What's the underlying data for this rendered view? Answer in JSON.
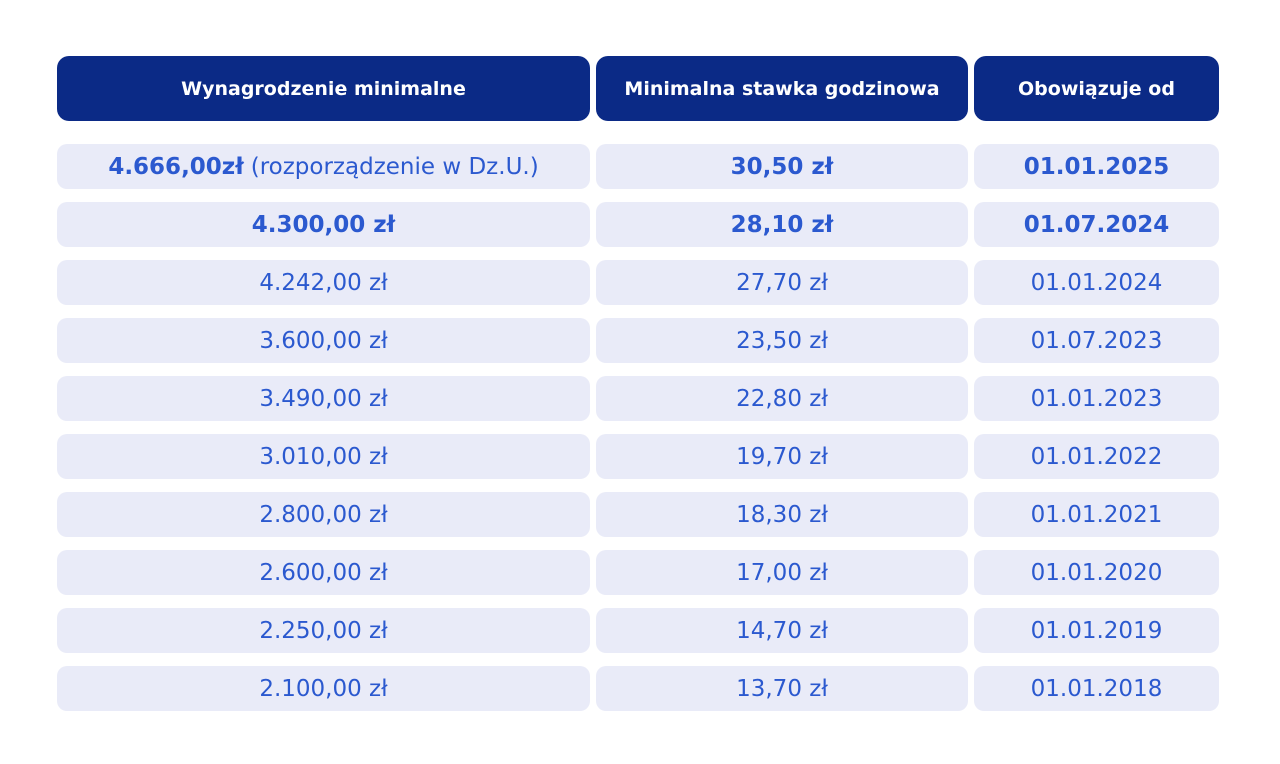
{
  "table": {
    "header": [
      "Wynagrodzenie minimalne",
      "Minimalna stawka godzinowa",
      "Obowiązuje od"
    ],
    "rows": [
      [
        [
          "4.666,00zł",
          "(rozporządzenie w Dz.U.)"
        ],
        "30,50 zł",
        "01.01.2025"
      ],
      [
        "4.300,00 zł",
        "28,10 zł",
        "01.07.2024"
      ],
      [
        "4.242,00 zł",
        "27,70 zł",
        "01.01.2024"
      ],
      [
        "3.600,00 zł",
        "23,50 zł",
        "01.07.2023"
      ],
      [
        "3.490,00 zł",
        "22,80 zł",
        "01.01.2023"
      ],
      [
        "3.010,00 zł",
        "19,70 zł",
        "01.01.2022"
      ],
      [
        "2.800,00 zł",
        "18,30 zł",
        "01.01.2021"
      ],
      [
        "2.600,00 zł",
        "17,00 zł",
        "01.01.2020"
      ],
      [
        "2.250,00 zł",
        "14,70 zł",
        "01.01.2019"
      ],
      [
        "2.100,00 zł",
        "13,70 zł",
        "01.01.2018"
      ]
    ]
  }
}
